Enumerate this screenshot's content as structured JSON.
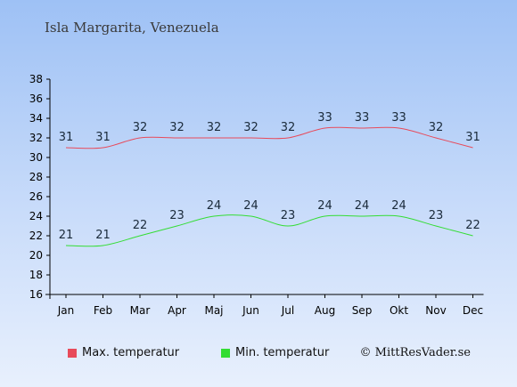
{
  "chart_data": {
    "type": "line",
    "title": "Isla Margarita, Venezuela",
    "categories": [
      "Jan",
      "Feb",
      "Mar",
      "Apr",
      "Maj",
      "Jun",
      "Jul",
      "Aug",
      "Sep",
      "Okt",
      "Nov",
      "Dec"
    ],
    "series": [
      {
        "name": "Max. temperatur",
        "color": "#e84a5a",
        "values": [
          31,
          31,
          32,
          32,
          32,
          32,
          32,
          33,
          33,
          33,
          32,
          31
        ]
      },
      {
        "name": "Min. temperatur",
        "color": "#33dd33",
        "values": [
          21,
          21,
          22,
          23,
          24,
          24,
          23,
          24,
          24,
          24,
          23,
          22
        ]
      }
    ],
    "ylim": [
      16,
      38
    ],
    "yticks": [
      16,
      18,
      20,
      22,
      24,
      26,
      28,
      30,
      32,
      34,
      36,
      38
    ],
    "grid": false,
    "legend": "bottom"
  },
  "credit": "© MittResVader.se"
}
